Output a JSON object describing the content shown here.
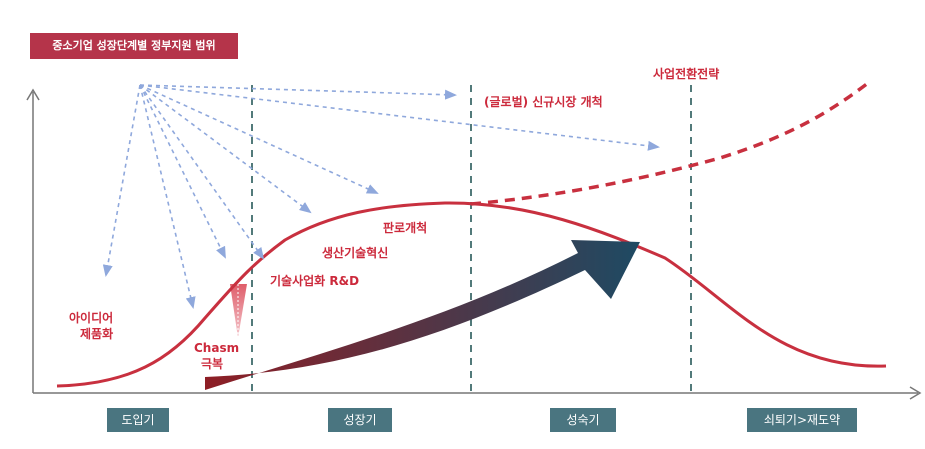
{
  "title": "중소기업 성장단계별 정부지원 범위",
  "stages": [
    "도입기",
    "성장기",
    "성숙기",
    "쇠퇴기>재도약"
  ],
  "labels": {
    "global_market": "(글로벌) 신규시장 개척",
    "business_transition": "사업전환전략",
    "sales": "판로개척",
    "production": "생산기술혁신",
    "rnd": "기술사업화 R&D",
    "idea_line1": "아이디어",
    "idea_line2": "제품화",
    "chasm_line1": "Chasm",
    "chasm_line2": "극복"
  },
  "colors": {
    "curve": "#c8303f",
    "arrow_start": "#8e1e25",
    "arrow_end": "#1e4a63",
    "dashed_arrows": "#8fa8dc",
    "divider": "#3f6b6c",
    "stage_box": "#4a7580",
    "title_box": "#b5344a"
  }
}
